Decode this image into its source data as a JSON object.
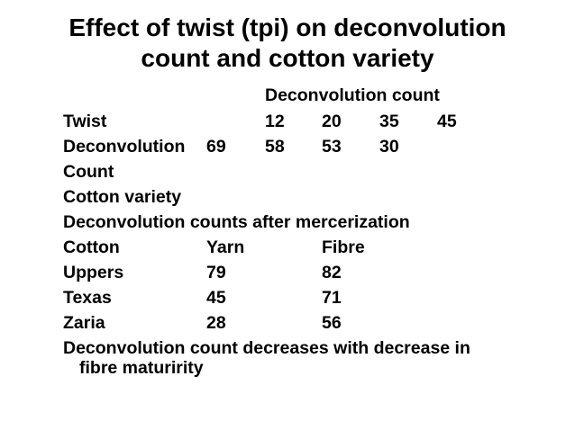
{
  "slide": {
    "title_line1": "Effect of twist (tpi) on deconvolution",
    "title_line2": "count and cotton variety",
    "deconvolution_count_heading": "Deconvolution count",
    "twist_row": {
      "label": "Twist",
      "values": [
        "12",
        "20",
        "35",
        "45"
      ]
    },
    "deconvolution_row": {
      "label_line1": "Deconvolution",
      "label_line2": "Count",
      "values": [
        "69",
        "58",
        "53",
        "30"
      ]
    },
    "cotton_variety_heading": "Cotton variety",
    "mercerization_heading": "Deconvolution counts after mercerization",
    "variety_table": {
      "headers": [
        "Cotton",
        "Yarn",
        "Fibre"
      ],
      "rows": [
        [
          "Uppers",
          "79",
          "82"
        ],
        [
          "Texas",
          "45",
          "71"
        ],
        [
          "Zaria",
          "28",
          "56"
        ]
      ]
    },
    "conclusion_line1": "Deconvolution count decreases with decrease in",
    "conclusion_line2": "fibre maturirity"
  }
}
